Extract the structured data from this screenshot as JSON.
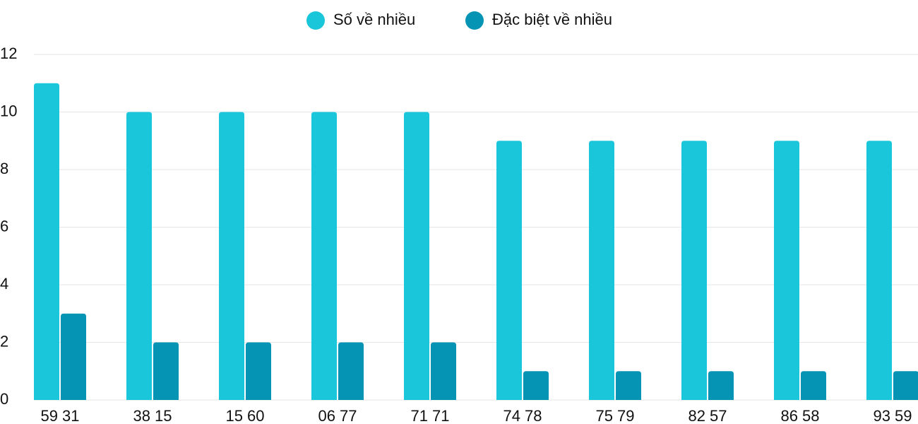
{
  "chart_data": {
    "type": "bar",
    "categories": [
      "59 31",
      "38 15",
      "15 60",
      "06 77",
      "71 71",
      "74 78",
      "75 79",
      "82 57",
      "86 58",
      "93 59"
    ],
    "series": [
      {
        "name": "Số về nhiều",
        "color": "#1ac6da",
        "values": [
          11,
          10,
          10,
          10,
          10,
          9,
          9,
          9,
          9,
          9
        ]
      },
      {
        "name": "Đặc biệt về nhiều",
        "color": "#0694b5",
        "values": [
          3,
          2,
          2,
          2,
          2,
          1,
          1,
          1,
          1,
          1
        ]
      }
    ],
    "ylim": [
      0,
      12
    ],
    "yticks": [
      0,
      2,
      4,
      6,
      8,
      10,
      12
    ],
    "grid": true,
    "legend": "top"
  }
}
